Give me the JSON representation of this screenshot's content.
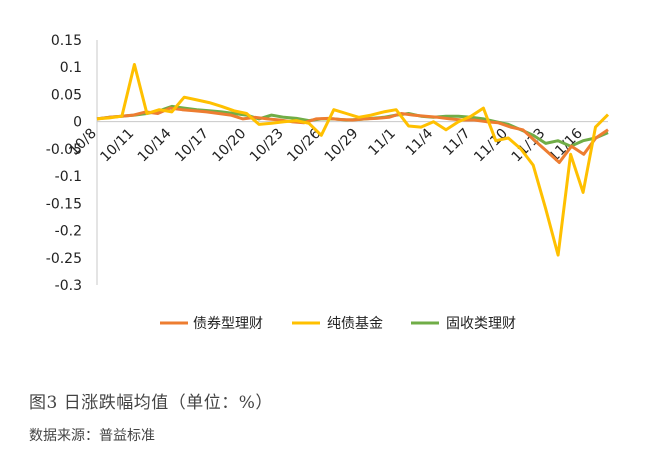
{
  "caption": "图3 日涨跌幅均值（单位：%）",
  "source": "数据来源：普益标准",
  "chart_data": {
    "type": "line",
    "xlabel": "",
    "ylabel": "",
    "ylim": [
      -0.3,
      0.15
    ],
    "yticks": [
      "0.15",
      "0.1",
      "0.05",
      "0",
      "-0.05",
      "-0.1",
      "-0.15",
      "-0.2",
      "-0.25",
      "-0.3"
    ],
    "tick_labels": [
      "10/8",
      "10/11",
      "10/14",
      "10/17",
      "10/20",
      "10/23",
      "10/26",
      "10/29",
      "11/1",
      "11/4",
      "11/7",
      "11/10",
      "11/13",
      "11/16"
    ],
    "legend_position": "bottom",
    "grid": false,
    "series": [
      {
        "name": "债券型理财",
        "color": "#ED7D31",
        "values": [
          0.005,
          0.008,
          0.01,
          0.012,
          0.018,
          0.015,
          0.025,
          0.022,
          0.02,
          0.018,
          0.015,
          0.012,
          0.005,
          0.008,
          0.005,
          0.003,
          0.0,
          -0.002,
          0.005,
          0.006,
          0.004,
          0.003,
          0.005,
          0.006,
          0.008,
          0.015,
          0.012,
          0.01,
          0.008,
          0.005,
          0.003,
          0.003,
          0.0,
          -0.002,
          -0.01,
          -0.015,
          -0.035,
          -0.055,
          -0.075,
          -0.045,
          -0.06,
          -0.03,
          -0.015
        ],
        "data_labels": []
      },
      {
        "name": "纯债基金",
        "color": "#FFC000",
        "values": [
          0.005,
          0.007,
          0.01,
          0.105,
          0.015,
          0.022,
          0.018,
          0.045,
          0.04,
          0.035,
          0.028,
          0.02,
          0.015,
          -0.005,
          -0.003,
          0.0,
          0.002,
          -0.003,
          -0.025,
          0.022,
          0.015,
          0.008,
          0.012,
          0.018,
          0.022,
          -0.008,
          -0.01,
          0.0,
          -0.015,
          0.0,
          0.01,
          0.025,
          -0.035,
          -0.03,
          -0.05,
          -0.08,
          -0.16,
          -0.245,
          -0.06,
          -0.13,
          -0.01,
          0.013
        ]
      },
      {
        "name": "固收类理财",
        "color": "#70AD47",
        "values": [
          0.005,
          0.008,
          0.01,
          0.012,
          0.015,
          0.02,
          0.028,
          0.025,
          0.022,
          0.02,
          0.018,
          0.015,
          0.012,
          0.005,
          0.012,
          0.008,
          0.006,
          0.002,
          0.005,
          0.005,
          0.003,
          0.004,
          0.006,
          0.008,
          0.012,
          0.015,
          0.01,
          0.008,
          0.01,
          0.01,
          0.008,
          0.005,
          0.0,
          -0.005,
          -0.015,
          -0.025,
          -0.04,
          -0.035,
          -0.045,
          -0.035,
          -0.03,
          -0.02
        ]
      }
    ]
  }
}
